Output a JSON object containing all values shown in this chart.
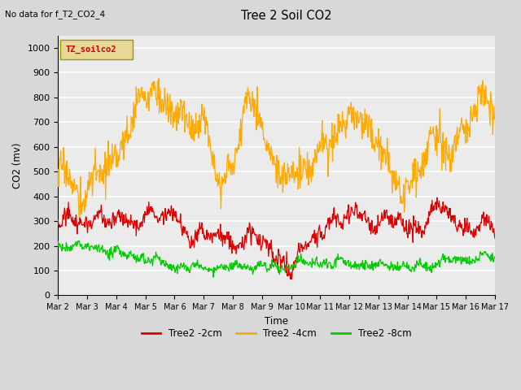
{
  "title": "Tree 2 Soil CO2",
  "subtitle": "No data for f_T2_CO2_4",
  "xlabel": "Time",
  "ylabel": "CO2 (mv)",
  "ylim": [
    0,
    1050
  ],
  "yticks": [
    0,
    100,
    200,
    300,
    400,
    500,
    600,
    700,
    800,
    900,
    1000
  ],
  "xtick_labels": [
    "Mar 2",
    "Mar 3",
    "Mar 4",
    "Mar 5",
    "Mar 6",
    "Mar 7",
    "Mar 8",
    "Mar 9",
    "Mar 10",
    "Mar 11",
    "Mar 12",
    "Mar 13",
    "Mar 14",
    "Mar 15",
    "Mar 16",
    "Mar 17"
  ],
  "legend_labels": [
    "Tree2 -2cm",
    "Tree2 -4cm",
    "Tree2 -8cm"
  ],
  "legend_colors": [
    "#dd0000",
    "#ffaa00",
    "#00cc00"
  ],
  "line_colors": [
    "#dd0000",
    "#ffaa00",
    "#00cc00"
  ],
  "bg_color": "#d8d8d8",
  "plot_bg_color": "#ebebeb",
  "grid_color": "#ffffff",
  "legend_box_fill": "#e8d898",
  "legend_box_edge": "#999900",
  "legend_box_text": "TZ_soilco2",
  "legend_box_text_color": "#cc0000",
  "n_points": 800
}
